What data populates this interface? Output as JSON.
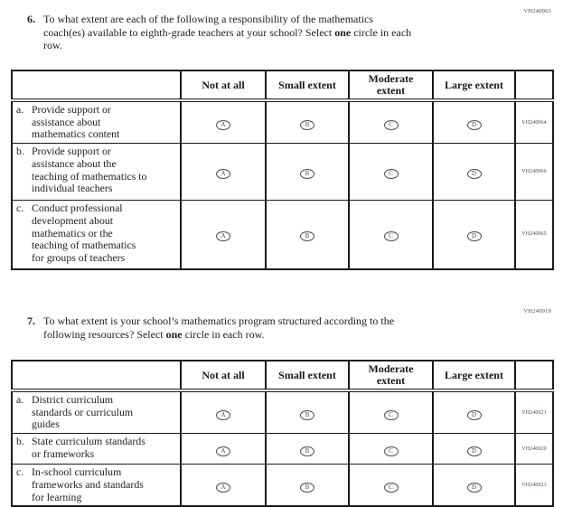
{
  "questions": [
    {
      "number": "6.",
      "code": "VH240963",
      "segments": [
        {
          "t": "To what extent are each of the following a responsibility of the mathematics",
          "br": true
        },
        {
          "t": "coach(es) available to eighth-grade teachers at your school? Select "
        },
        {
          "t": "one",
          "b": true
        },
        {
          "t": " circle in each",
          "br": true
        },
        {
          "t": "row."
        }
      ],
      "table": {
        "headers": [
          "",
          "Not at all",
          "Small extent",
          [
            "Moderate",
            "extent"
          ],
          "Large extent",
          ""
        ],
        "options": [
          "A",
          "B",
          "C",
          "D"
        ],
        "rows": [
          {
            "letter": "a.",
            "label": [
              "Provide support or",
              "assistance about",
              "mathematics content"
            ],
            "code": "VH240964"
          },
          {
            "letter": "b.",
            "label": [
              "Provide support or",
              "assistance about the",
              "teaching of mathematics to",
              "individual teachers"
            ],
            "code": "VH240966"
          },
          {
            "letter": "c.",
            "label": [
              "Conduct professional",
              "development about",
              "mathematics or the",
              "teaching of mathematics",
              "for groups of teachers"
            ],
            "code": "VH240965"
          }
        ]
      }
    },
    {
      "number": "7.",
      "code": "VH240919",
      "segments": [
        {
          "t": "To what extent is your school’s mathematics program structured according to the",
          "br": true
        },
        {
          "t": "following resources? Select "
        },
        {
          "t": "one",
          "b": true
        },
        {
          "t": " circle in each row."
        }
      ],
      "table": {
        "headers": [
          "",
          "Not at all",
          "Small extent",
          [
            "Moderate",
            "extent"
          ],
          "Large extent",
          ""
        ],
        "options": [
          "A",
          "B",
          "C",
          "D"
        ],
        "rows": [
          {
            "letter": "a.",
            "label": [
              "District curriculum",
              "standards or curriculum",
              "guides"
            ],
            "code": "VH240921"
          },
          {
            "letter": "b.",
            "label": [
              "State curriculum standards",
              "or frameworks"
            ],
            "code": "VH240920"
          },
          {
            "letter": "c.",
            "label": [
              "In-school curriculum",
              "frameworks and standards",
              "for learning"
            ],
            "code": "VH240923"
          }
        ]
      }
    }
  ]
}
